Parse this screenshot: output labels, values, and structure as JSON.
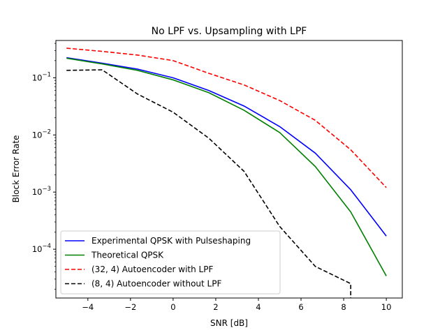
{
  "chart_data": {
    "type": "line",
    "title": "No LPF vs. Upsampling with LPF",
    "xlabel": "SNR [dB]",
    "ylabel": "Block Error Rate",
    "yscale": "log",
    "xlim": [
      -5.5,
      10.75
    ],
    "ylim": [
      1.4e-05,
      0.45
    ],
    "xticks": [
      -4,
      -2,
      0,
      2,
      4,
      6,
      8,
      10
    ],
    "xtick_labels": [
      "−4",
      "−2",
      "0",
      "2",
      "4",
      "6",
      "8",
      "10"
    ],
    "ytick_decades": [
      -4,
      -3,
      -2,
      -1
    ],
    "grid": false,
    "legend_position": "lower-left",
    "series": [
      {
        "name": "Experimental QPSK with Pulseshaping",
        "color": "#0000ff",
        "dash": "solid",
        "x": [
          -5,
          -3.33,
          -1.67,
          0,
          1.67,
          3.33,
          5,
          6.67,
          8.33,
          10
        ],
        "y": [
          0.225,
          0.18,
          0.142,
          0.1,
          0.06,
          0.032,
          0.014,
          0.0048,
          0.0011,
          0.00017
        ]
      },
      {
        "name": "Theoretical QPSK",
        "color": "#008000",
        "dash": "solid",
        "x": [
          -5,
          -3.33,
          -1.67,
          0,
          1.67,
          3.33,
          5,
          6.67,
          8.33,
          10
        ],
        "y": [
          0.22,
          0.175,
          0.135,
          0.092,
          0.055,
          0.027,
          0.011,
          0.0028,
          0.00045,
          3.4e-05
        ]
      },
      {
        "name": "(32, 4) Autoencoder with LPF",
        "color": "#ff0000",
        "dash": "dashed",
        "x": [
          -5,
          -3.33,
          -1.67,
          0,
          1.67,
          3.33,
          5,
          6.67,
          8.33,
          10
        ],
        "y": [
          0.33,
          0.29,
          0.25,
          0.2,
          0.12,
          0.075,
          0.04,
          0.018,
          0.0055,
          0.0012
        ]
      },
      {
        "name": "(8, 4) Autoencoder without LPF",
        "color": "#000000",
        "dash": "dashed",
        "x": [
          -5,
          -3.33,
          -1.67,
          0,
          1.67,
          3.33,
          5,
          6.67,
          8.33,
          8.33
        ],
        "y": [
          0.135,
          0.138,
          0.052,
          0.025,
          0.0088,
          0.0023,
          0.00025,
          5e-05,
          2.5e-05,
          1.4e-05
        ]
      }
    ]
  }
}
